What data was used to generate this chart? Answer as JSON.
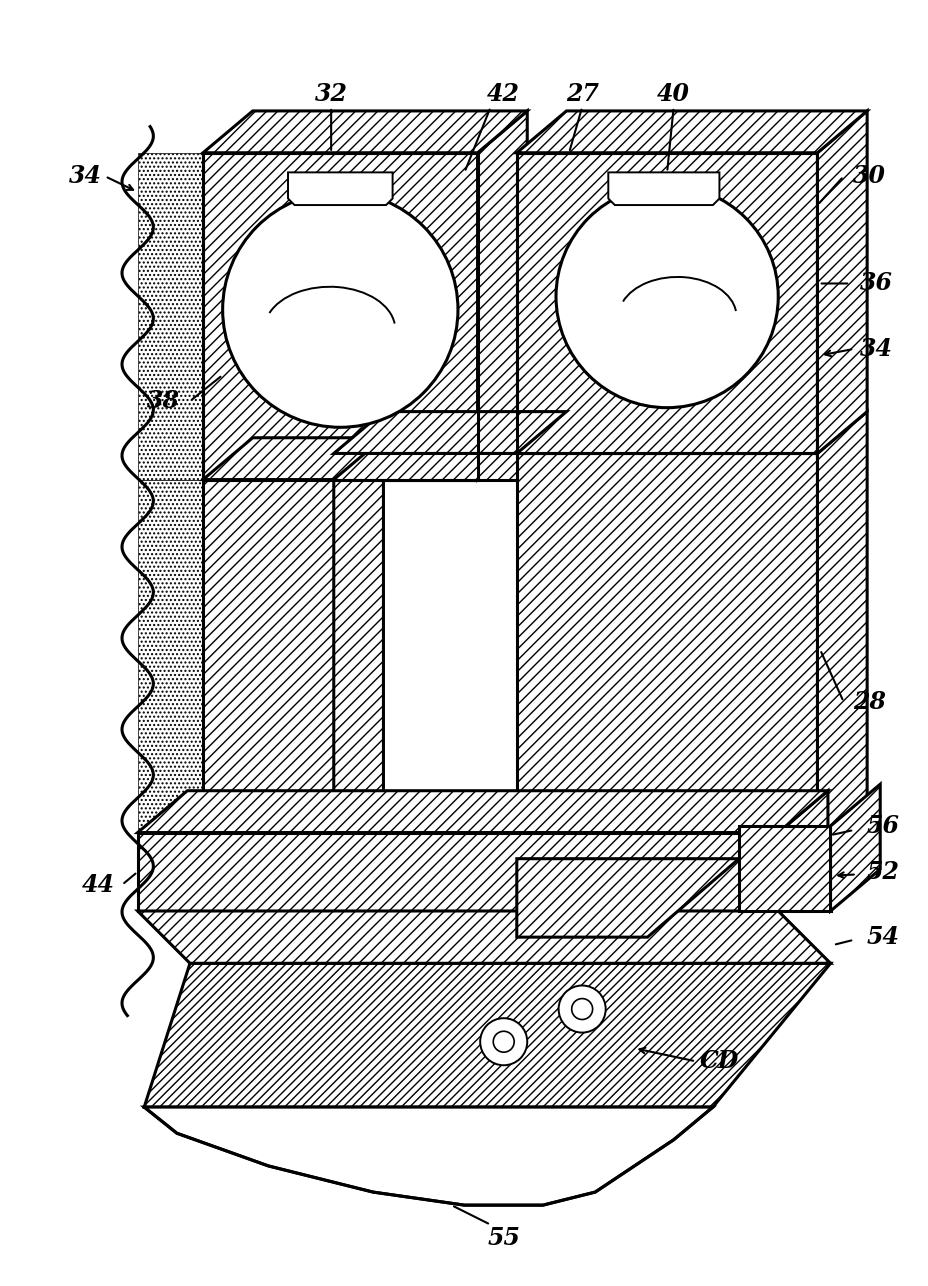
{
  "bg_color": "#ffffff",
  "lw_main": 2.2,
  "lw_thin": 1.4,
  "hatch_dense": "////",
  "hatch_std": "///",
  "hatch_dot": "...."
}
